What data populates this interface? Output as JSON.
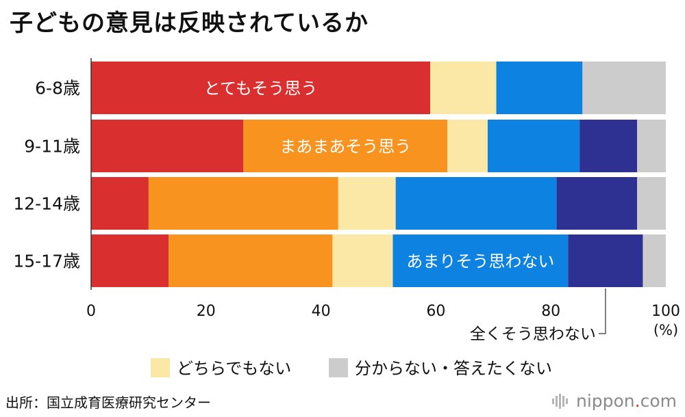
{
  "title": "子どもの意見は反映されているか",
  "source": "出所：国立成育医療研究センター",
  "logo": {
    "name": "nippon",
    "dot": ".",
    "tld": "com"
  },
  "chart_data": {
    "type": "bar",
    "orientation": "horizontal",
    "stacked": true,
    "categories": [
      "6-8歳",
      "9-11歳",
      "12-14歳",
      "15-17歳"
    ],
    "series": [
      {
        "name": "とてもそう思う",
        "color": "#d92f2f",
        "values": [
          59,
          26.5,
          10,
          13.5
        ]
      },
      {
        "name": "まあまあそう思う",
        "color": "#f7931e",
        "values": [
          0,
          35.5,
          33,
          28.5
        ]
      },
      {
        "name": "どちらでもない",
        "color": "#fbe7a6",
        "values": [
          11.5,
          7,
          10,
          10.5
        ]
      },
      {
        "name": "あまりそう思わない",
        "color": "#0e82e0",
        "values": [
          15,
          16,
          28,
          30.5
        ]
      },
      {
        "name": "全くそう思わない",
        "color": "#2e3192",
        "values": [
          0,
          10,
          14,
          13
        ]
      },
      {
        "name": "分からない・答えたくない",
        "color": "#cccccc",
        "values": [
          14.5,
          5,
          5,
          4
        ]
      }
    ],
    "xlim": [
      0,
      100
    ],
    "xticks": [
      "0",
      "20",
      "40",
      "60",
      "80",
      "100"
    ],
    "xunit": "(%)",
    "grid": false,
    "in_bar_labels": [
      {
        "series": 0,
        "category": 0,
        "text": "とてもそう思う"
      },
      {
        "series": 1,
        "category": 1,
        "text": "まあまあそう思う"
      },
      {
        "series": 3,
        "category": 3,
        "text": "あまりそう思わない"
      }
    ],
    "callout": {
      "series": 4,
      "text": "全くそう思わない"
    },
    "legend": {
      "position": "bottom",
      "entries": [
        {
          "series": 2,
          "text": "どちらでもない"
        },
        {
          "series": 5,
          "text": "分からない・答えたくない"
        }
      ]
    }
  }
}
